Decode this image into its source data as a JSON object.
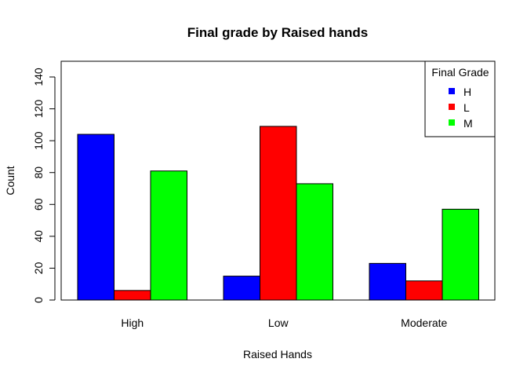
{
  "chart_data": {
    "type": "bar",
    "title": "Final grade by Raised hands",
    "xlabel": "Raised Hands",
    "ylabel": "Count",
    "categories": [
      "High",
      "Low",
      "Moderate"
    ],
    "series": [
      {
        "name": "H",
        "color": "#0000ff",
        "values": [
          104,
          15,
          23
        ]
      },
      {
        "name": "L",
        "color": "#ff0000",
        "values": [
          6,
          109,
          12
        ]
      },
      {
        "name": "M",
        "color": "#00ff00",
        "values": [
          81,
          73,
          57
        ]
      }
    ],
    "ylim": [
      0,
      150
    ],
    "yticks": [
      0,
      20,
      40,
      60,
      80,
      100,
      120,
      140
    ],
    "grid": false,
    "legend": {
      "title": "Final Grade",
      "position": "top-right"
    }
  }
}
